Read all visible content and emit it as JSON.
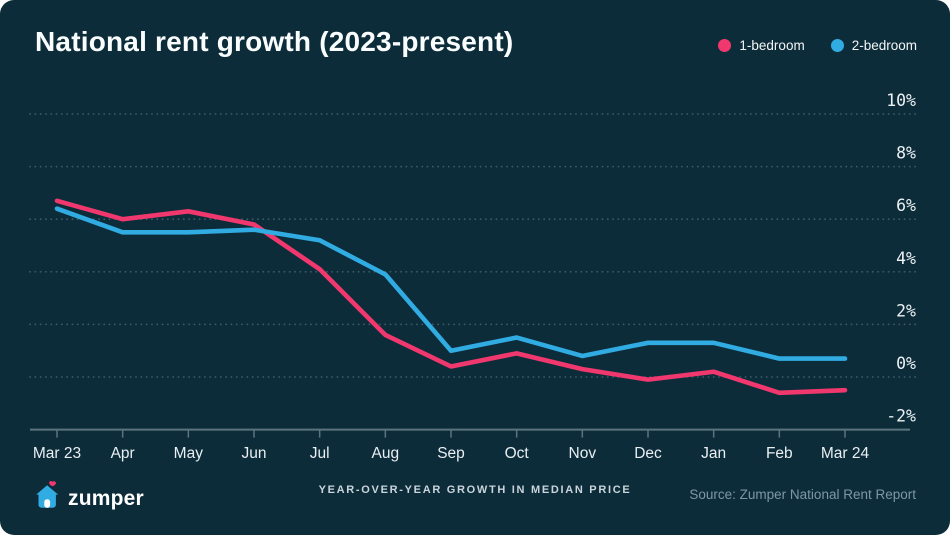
{
  "title": "National rent growth (2023-present)",
  "legend": [
    {
      "label": "1-bedroom",
      "color": "#F0386E"
    },
    {
      "label": "2-bedroom",
      "color": "#31ACE3"
    }
  ],
  "footer": {
    "brand": "zumper",
    "caption": "YEAR-OVER-YEAR GROWTH IN MEDIAN PRICE",
    "source": "Source: Zumper National Rent Report"
  },
  "icons": {
    "logo_house": "house-icon",
    "logo_heart": "heart-icon",
    "legend_markers": [
      "1bedroom-dot-icon",
      "2bedroom-dot-icon"
    ]
  },
  "colors": {
    "bg": "#0d2c3a",
    "pink": "#F0386E",
    "blue": "#31ACE3",
    "axis": "#5d7480",
    "grid": "rgba(168,197,210,0.30)",
    "axis_text": "#ecf2f4",
    "caption": "#c9d5db",
    "muted": "#7e97a4"
  },
  "chart_data": {
    "type": "line",
    "title": "National rent growth (2023-present)",
    "xlabel": "",
    "ylabel": "",
    "x": [
      "Mar 23",
      "Apr",
      "May",
      "Jun",
      "Jul",
      "Aug",
      "Sep",
      "Oct",
      "Nov",
      "Dec",
      "Jan",
      "Feb",
      "Mar 24"
    ],
    "series": [
      {
        "name": "1-bedroom",
        "color": "#F0386E",
        "values": [
          6.7,
          6.0,
          6.3,
          5.8,
          4.1,
          1.6,
          0.4,
          0.9,
          0.3,
          -0.1,
          0.2,
          -0.6,
          -0.5
        ]
      },
      {
        "name": "2-bedroom",
        "color": "#31ACE3",
        "values": [
          6.4,
          5.5,
          5.5,
          5.6,
          5.2,
          3.9,
          1.0,
          1.5,
          0.8,
          1.3,
          1.3,
          0.7,
          0.7
        ]
      }
    ],
    "y_ticks": [
      10,
      8,
      6,
      4,
      2,
      0,
      -2
    ],
    "y_tick_labels": [
      "10%",
      "8%",
      "6%",
      "4%",
      "2%",
      "0%",
      "-2%"
    ],
    "ylim": [
      -2,
      10
    ],
    "grid": "dotted horizontal lines, solid bottom axis at -2%",
    "legend_position": "top-right"
  }
}
